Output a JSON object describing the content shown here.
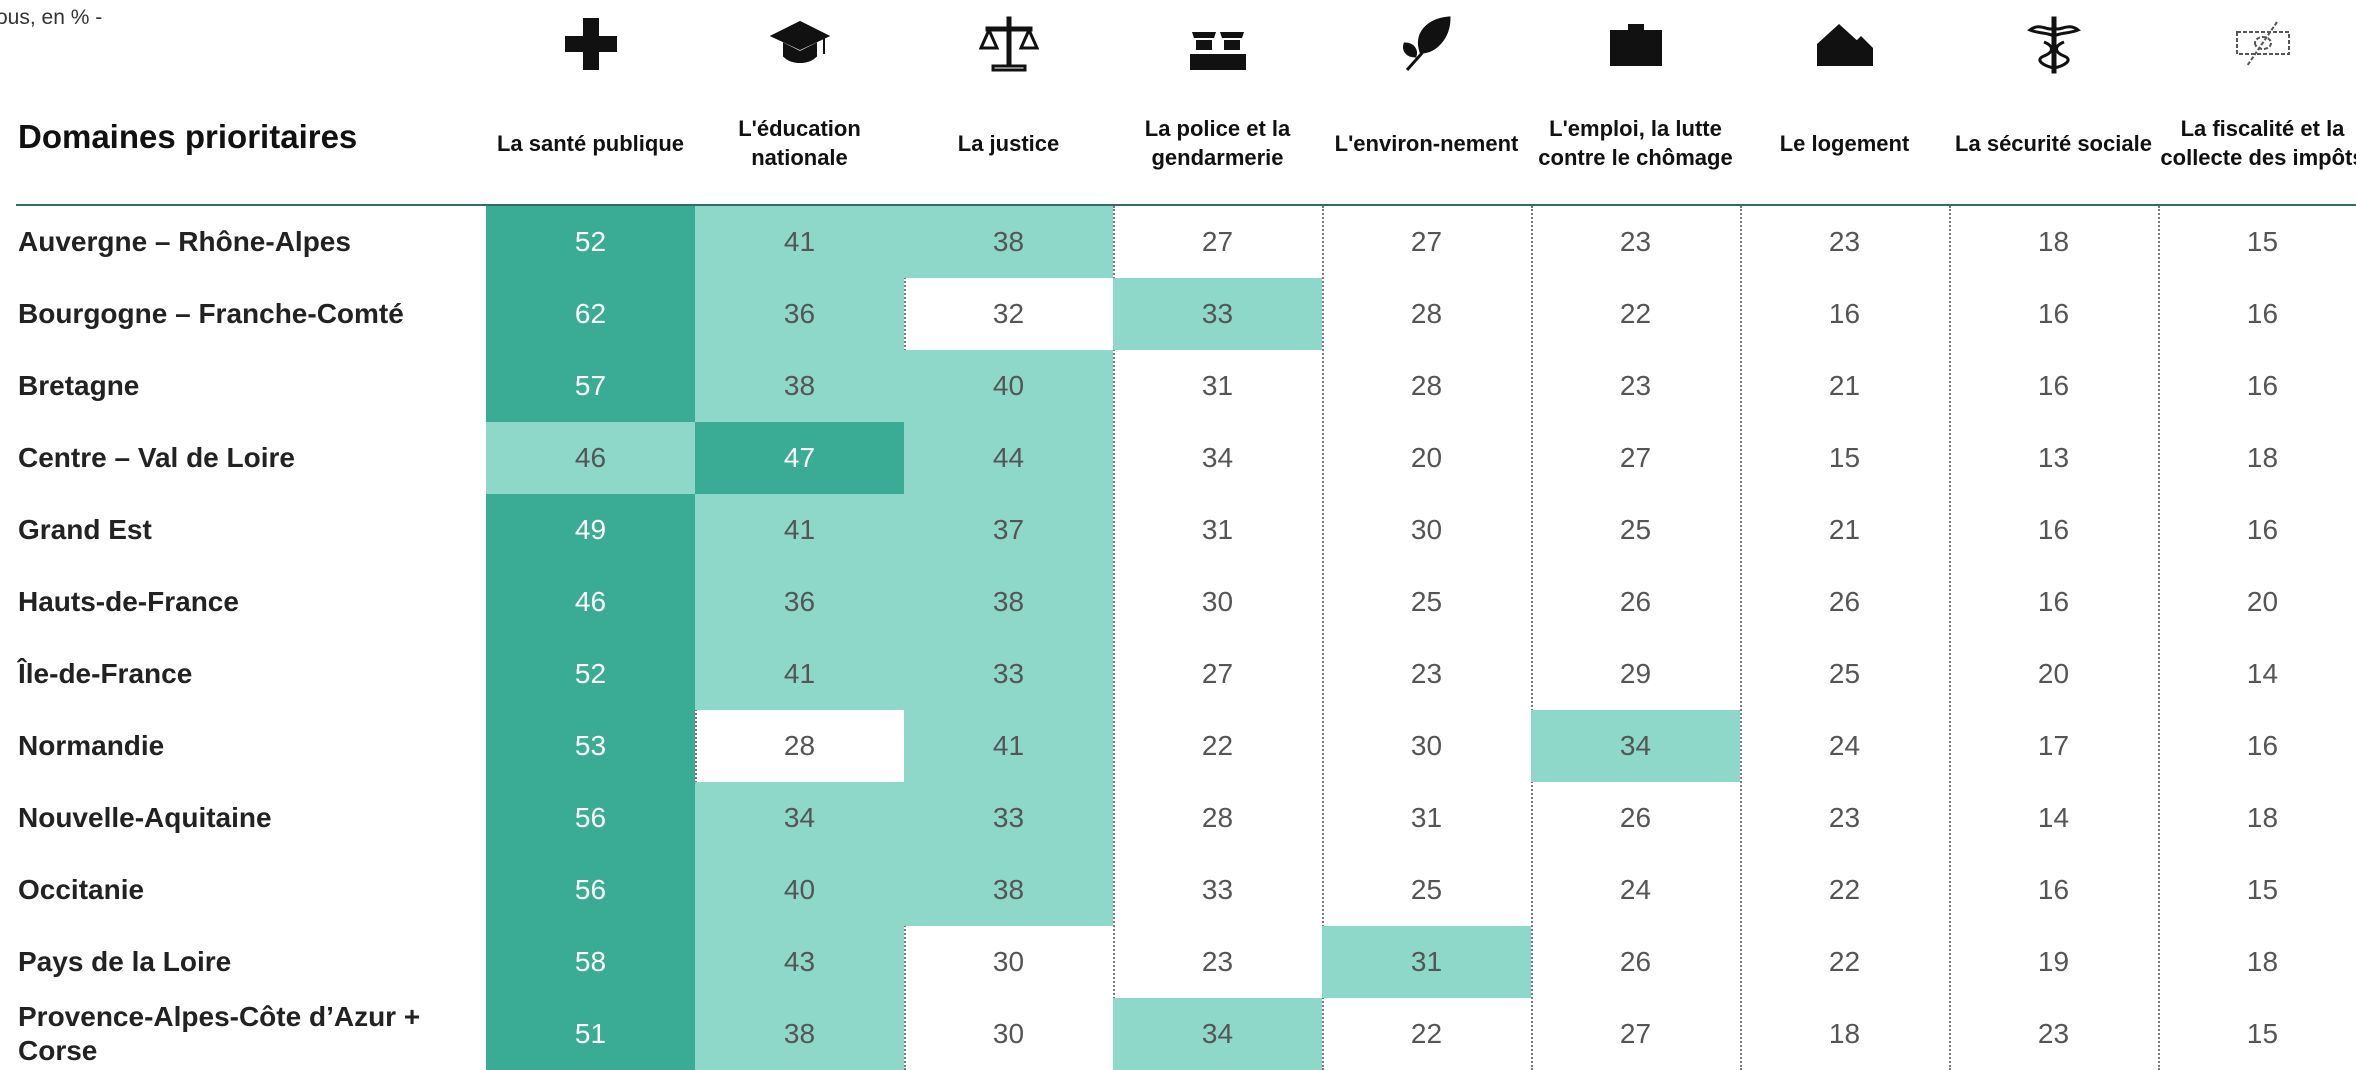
{
  "subtitle": "ous, en % -",
  "table": {
    "header": "Domaines prioritaires",
    "highlight": {
      "first": "#3aab94",
      "top3": "#8ed8c9"
    },
    "columns": [
      "La santé publique",
      "L'éducation nationale",
      "La justice",
      "La police et la gendarmerie",
      "L'environ-nement",
      "L'emploi, la lutte contre le chômage",
      "Le logement",
      "La sécurité sociale",
      "La fiscalité et la collecte des impôts"
    ],
    "rows": [
      {
        "label": "Auvergne – Rhône-Alpes",
        "values": [
          52,
          41,
          38,
          27,
          27,
          23,
          23,
          18,
          15
        ]
      },
      {
        "label": "Bourgogne – Franche-Comté",
        "values": [
          62,
          36,
          32,
          33,
          28,
          22,
          16,
          16,
          16
        ]
      },
      {
        "label": "Bretagne",
        "values": [
          57,
          38,
          40,
          31,
          28,
          23,
          21,
          16,
          16
        ]
      },
      {
        "label": "Centre – Val de Loire",
        "values": [
          46,
          47,
          44,
          34,
          20,
          27,
          15,
          13,
          18
        ]
      },
      {
        "label": "Grand Est",
        "values": [
          49,
          41,
          37,
          31,
          30,
          25,
          21,
          16,
          16
        ]
      },
      {
        "label": "Hauts-de-France",
        "values": [
          46,
          36,
          38,
          30,
          25,
          26,
          26,
          16,
          20
        ]
      },
      {
        "label": "Île-de-France",
        "values": [
          52,
          41,
          33,
          27,
          23,
          29,
          25,
          20,
          14
        ]
      },
      {
        "label": "Normandie",
        "values": [
          53,
          28,
          41,
          22,
          30,
          34,
          24,
          17,
          16
        ]
      },
      {
        "label": "Nouvelle-Aquitaine",
        "values": [
          56,
          34,
          33,
          28,
          31,
          26,
          23,
          14,
          18
        ]
      },
      {
        "label": "Occitanie",
        "values": [
          56,
          40,
          38,
          33,
          25,
          24,
          22,
          16,
          15
        ]
      },
      {
        "label": "Pays de la Loire",
        "values": [
          58,
          43,
          30,
          23,
          31,
          26,
          22,
          19,
          18
        ]
      },
      {
        "label": "Provence-Alpes-Côte d’Azur + Corse",
        "values": [
          51,
          38,
          30,
          34,
          22,
          27,
          18,
          23,
          15
        ]
      }
    ]
  }
}
